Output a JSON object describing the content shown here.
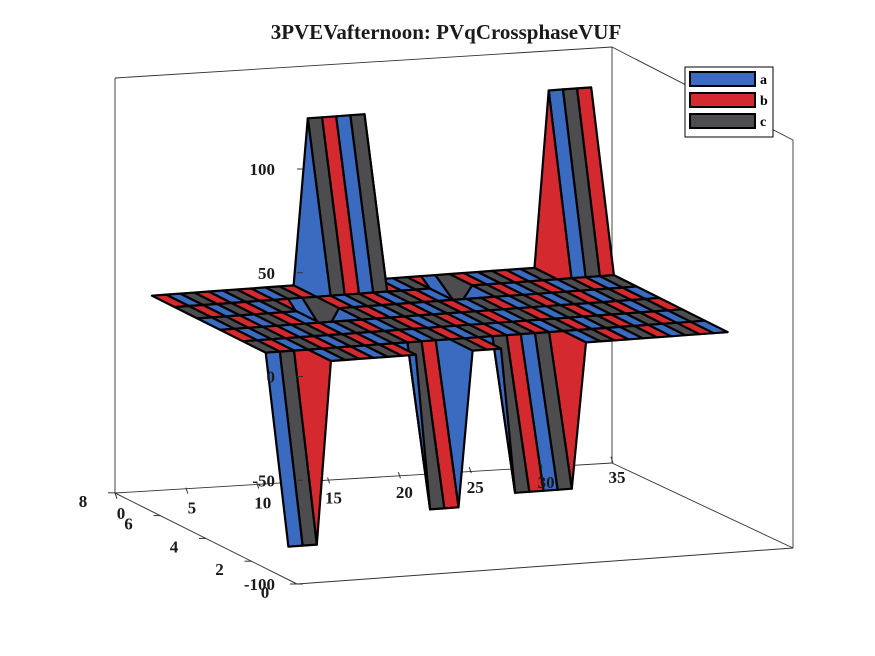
{
  "chart_data": {
    "type": "surface3d",
    "title": "3PVEVafternoon: PVqCrossphaseVUF",
    "xlabel": "",
    "ylabel": "",
    "zlabel": "",
    "xlim": [
      0,
      35
    ],
    "ylim": [
      0,
      8
    ],
    "zlim": [
      -100,
      100
    ],
    "x_ticks": [
      "0",
      "5",
      "10",
      "15",
      "20",
      "25",
      "30",
      "35"
    ],
    "y_ticks": [
      "0",
      "2",
      "4",
      "6",
      "8"
    ],
    "z_ticks": [
      "-100",
      "-50",
      "0",
      "50",
      "100"
    ],
    "grid": false,
    "legend_position": "top-right",
    "legend": [
      {
        "label": "a",
        "color": "#3a6bc0"
      },
      {
        "label": "b",
        "color": "#d42a2f"
      },
      {
        "label": "c",
        "color": "#4d4d4f"
      }
    ],
    "series": [
      {
        "name": "a",
        "approx_min": -12,
        "approx_max": 0
      },
      {
        "name": "b",
        "approx_min": 0,
        "approx_max": 85,
        "peak_x": [
          12,
          30
        ]
      },
      {
        "name": "c",
        "approx_min": -90,
        "approx_max": 0,
        "trough_x": [
          1,
          12,
          20
        ]
      }
    ]
  }
}
